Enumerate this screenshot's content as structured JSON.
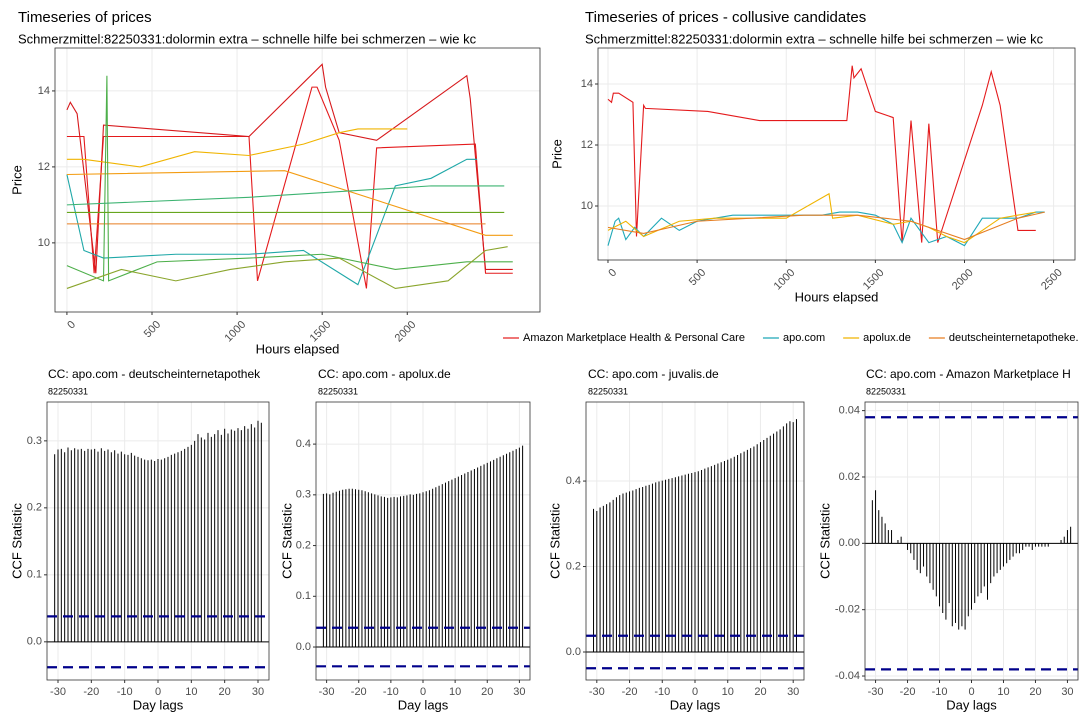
{
  "chart_data": [
    {
      "type": "line",
      "title": "Timeseries of prices",
      "subtitle": "Schmerzmittel:82250331:dolormin extra – schnelle hilfe bei schmerzen – wie kc",
      "x_label": "Hours elapsed",
      "y_label": "Price",
      "xlim": [
        -70,
        2780
      ],
      "ylim": [
        8.18,
        15.13
      ],
      "xticks": [
        0,
        500,
        1000,
        1500,
        2000
      ],
      "yticks": [
        10,
        12,
        14
      ],
      "grid": true,
      "series": [
        {
          "color": "#e41a1c",
          "x": [
            0,
            100,
            160,
            215,
            640,
            1070,
            1120,
            1440,
            1470,
            1600,
            1760,
            1820,
            2400,
            2460,
            2620
          ],
          "values": [
            12.8,
            12.8,
            9.2,
            12.8,
            12.8,
            12.8,
            9.0,
            14.1,
            14.1,
            12.7,
            8.8,
            12.5,
            12.6,
            9.2,
            9.2
          ]
        },
        {
          "color": "#d7191c",
          "x": [
            0,
            20,
            60,
            170,
            215,
            1070,
            1500,
            1520,
            1600,
            1820,
            2350,
            2370,
            2460,
            2620
          ],
          "values": [
            13.5,
            13.7,
            13.4,
            9.2,
            13.1,
            12.8,
            14.7,
            14.1,
            12.9,
            12.7,
            14.4,
            13.8,
            9.3,
            9.3
          ]
        },
        {
          "color": "#1fa8a8",
          "x": [
            0,
            100,
            215,
            640,
            1070,
            1390,
            1710,
            1930,
            2140,
            2350,
            2410
          ],
          "values": [
            11.8,
            9.8,
            9.6,
            9.7,
            9.7,
            9.8,
            8.9,
            11.5,
            11.7,
            12.2,
            12.2
          ]
        },
        {
          "color": "#f0b400",
          "x": [
            0,
            100,
            430,
            750,
            1070,
            1390,
            1600,
            1710,
            2000
          ],
          "values": [
            12.2,
            12.2,
            12.0,
            12.4,
            12.3,
            12.6,
            12.9,
            13.0,
            13.0
          ]
        },
        {
          "color": "#f39c12",
          "x": [
            0,
            1280,
            2460,
            2620
          ],
          "values": [
            11.8,
            11.9,
            10.2,
            10.2
          ]
        },
        {
          "color": "#e67e22",
          "x": [
            0,
            2460
          ],
          "values": [
            10.5,
            10.5
          ]
        },
        {
          "color": "#4daf4a",
          "x": [
            0,
            215,
            235,
            245,
            530,
            1070,
            1500,
            1930,
            2350,
            2620
          ],
          "values": [
            9.4,
            9.0,
            14.4,
            9.0,
            9.5,
            9.6,
            9.7,
            9.3,
            9.5,
            9.5
          ]
        },
        {
          "color": "#8aa52c",
          "x": [
            0,
            320,
            640,
            960,
            1280,
            1600,
            1930,
            2240,
            2460,
            2590
          ],
          "values": [
            8.8,
            9.3,
            9.0,
            9.3,
            9.5,
            9.6,
            8.8,
            9.0,
            9.8,
            9.9
          ]
        },
        {
          "color": "#3cb371",
          "x": [
            0,
            1070,
            2140,
            2570
          ],
          "values": [
            11.0,
            11.2,
            11.5,
            11.5
          ]
        },
        {
          "color": "#66a61e",
          "x": [
            0,
            2570
          ],
          "values": [
            10.8,
            10.8
          ]
        }
      ]
    },
    {
      "type": "line",
      "title": "Timeseries of prices - collusive candidates",
      "subtitle": "Schmerzmittel:82250331:dolormin extra – schnelle hilfe bei schmerzen – wie kc",
      "x_label": "Hours elapsed",
      "y_label": "Price",
      "xlim": [
        -56,
        2620
      ],
      "ylim": [
        8.23,
        15.18
      ],
      "xticks": [
        0,
        500,
        1000,
        1500,
        2000,
        2500
      ],
      "yticks": [
        10,
        12,
        14
      ],
      "grid": true,
      "legend": "bottom",
      "series": [
        {
          "name": "Amazon Marketplace Health & Personal Care",
          "color": "#e41a1c",
          "x": [
            0,
            20,
            30,
            60,
            140,
            160,
            200,
            210,
            560,
            850,
            1080,
            1340,
            1370,
            1380,
            1420,
            1500,
            1600,
            1650,
            1700,
            1760,
            1800,
            1850,
            2100,
            2150,
            2200,
            2300,
            2400
          ],
          "values": [
            13.5,
            13.4,
            13.7,
            13.7,
            13.4,
            9.0,
            13.3,
            13.2,
            13.1,
            12.8,
            12.8,
            12.8,
            14.6,
            14.2,
            14.5,
            13.1,
            12.9,
            8.8,
            12.8,
            8.8,
            12.7,
            8.8,
            13.3,
            14.4,
            13.3,
            9.2,
            9.2
          ]
        },
        {
          "name": "apo.com",
          "color": "#1fa8b8",
          "x": [
            0,
            40,
            60,
            100,
            150,
            200,
            300,
            400,
            500,
            600,
            700,
            800,
            900,
            1000,
            1200,
            1300,
            1400,
            1500,
            1600,
            1650,
            1700,
            1800,
            1900,
            2000,
            2100,
            2200,
            2300,
            2400,
            2450
          ],
          "values": [
            8.7,
            9.5,
            9.6,
            8.9,
            9.3,
            9.0,
            9.6,
            9.2,
            9.5,
            9.6,
            9.7,
            9.7,
            9.7,
            9.7,
            9.7,
            9.8,
            9.8,
            9.7,
            9.4,
            8.8,
            9.6,
            8.8,
            9.0,
            8.7,
            9.6,
            9.6,
            9.6,
            9.8,
            9.8
          ]
        },
        {
          "name": "apolux.de",
          "color": "#f0b400",
          "x": [
            0,
            100,
            200,
            400,
            600,
            800,
            1000,
            1240,
            1260,
            1400,
            1600,
            1700,
            1800,
            1900,
            2000,
            2200,
            2400
          ],
          "values": [
            9.2,
            9.5,
            9.0,
            9.5,
            9.6,
            9.6,
            9.6,
            10.4,
            9.6,
            9.7,
            9.4,
            9.5,
            9.3,
            9.0,
            8.8,
            9.6,
            9.8
          ]
        },
        {
          "name": "deutscheinternetapotheke.",
          "color": "#e67e22",
          "x": [
            0,
            200,
            500,
            800,
            1100,
            1400,
            1700,
            2000,
            2300,
            2450
          ],
          "values": [
            9.3,
            9.1,
            9.5,
            9.6,
            9.7,
            9.7,
            9.5,
            8.9,
            9.6,
            9.8
          ]
        }
      ]
    },
    {
      "type": "bar",
      "title": "CC: apo.com - deutscheinternetapothek",
      "subtitle": "82250331",
      "x_label": "Day lags",
      "y_label": "CCF Statistic",
      "xlim": [
        -33.3,
        33.3
      ],
      "ylim": [
        -0.057,
        0.358
      ],
      "xticks": [
        -30,
        -20,
        -10,
        0,
        10,
        20,
        30
      ],
      "yticks": [
        {
          "value": 0,
          "label": "0.0"
        },
        0.1,
        0.2,
        0.3
      ],
      "conf_limits": [
        -0.038,
        0.038
      ],
      "grid": true,
      "x": [
        -31,
        -30,
        -29,
        -28,
        -27,
        -26,
        -25,
        -24,
        -23,
        -22,
        -21,
        -20,
        -19,
        -18,
        -17,
        -16,
        -15,
        -14,
        -13,
        -12,
        -11,
        -10,
        -9,
        -8,
        -7,
        -6,
        -5,
        -4,
        -3,
        -2,
        -1,
        0,
        1,
        2,
        3,
        4,
        5,
        6,
        7,
        8,
        9,
        10,
        11,
        12,
        13,
        14,
        15,
        16,
        17,
        18,
        19,
        20,
        21,
        22,
        23,
        24,
        25,
        26,
        27,
        28,
        29,
        30,
        31
      ],
      "values": [
        0.28,
        0.287,
        0.288,
        0.283,
        0.29,
        0.286,
        0.289,
        0.287,
        0.288,
        0.285,
        0.288,
        0.287,
        0.288,
        0.284,
        0.289,
        0.285,
        0.287,
        0.283,
        0.286,
        0.281,
        0.284,
        0.28,
        0.279,
        0.282,
        0.278,
        0.276,
        0.274,
        0.272,
        0.271,
        0.272,
        0.27,
        0.273,
        0.272,
        0.274,
        0.276,
        0.279,
        0.281,
        0.283,
        0.285,
        0.288,
        0.291,
        0.294,
        0.3,
        0.31,
        0.305,
        0.302,
        0.312,
        0.306,
        0.31,
        0.316,
        0.309,
        0.318,
        0.311,
        0.317,
        0.315,
        0.319,
        0.316,
        0.322,
        0.318,
        0.325,
        0.32,
        0.33,
        0.327
      ]
    },
    {
      "type": "bar",
      "title": "CC: apo.com - apolux.de",
      "subtitle": "82250331",
      "x_label": "Day lags",
      "y_label": "CCF Statistic",
      "xlim": [
        -33.3,
        33.3
      ],
      "ylim": [
        -0.065,
        0.483
      ],
      "xticks": [
        -30,
        -20,
        -10,
        0,
        10,
        20,
        30
      ],
      "yticks": [
        {
          "value": 0,
          "label": "0.0"
        },
        0.1,
        0.2,
        0.3,
        0.4
      ],
      "conf_limits": [
        -0.038,
        0.038
      ],
      "grid": true,
      "x": [
        -31,
        -30,
        -29,
        -28,
        -27,
        -26,
        -25,
        -24,
        -23,
        -22,
        -21,
        -20,
        -19,
        -18,
        -17,
        -16,
        -15,
        -14,
        -13,
        -12,
        -11,
        -10,
        -9,
        -8,
        -7,
        -6,
        -5,
        -4,
        -3,
        -2,
        -1,
        0,
        1,
        2,
        3,
        4,
        5,
        6,
        7,
        8,
        9,
        10,
        11,
        12,
        13,
        14,
        15,
        16,
        17,
        18,
        19,
        20,
        21,
        22,
        23,
        24,
        25,
        26,
        27,
        28,
        29,
        30,
        31
      ],
      "values": [
        0.302,
        0.303,
        0.301,
        0.304,
        0.306,
        0.308,
        0.31,
        0.311,
        0.312,
        0.312,
        0.311,
        0.31,
        0.309,
        0.307,
        0.305,
        0.303,
        0.301,
        0.299,
        0.297,
        0.296,
        0.294,
        0.295,
        0.296,
        0.295,
        0.297,
        0.298,
        0.299,
        0.301,
        0.3,
        0.302,
        0.303,
        0.305,
        0.307,
        0.309,
        0.312,
        0.315,
        0.318,
        0.321,
        0.324,
        0.327,
        0.33,
        0.333,
        0.336,
        0.339,
        0.342,
        0.345,
        0.348,
        0.351,
        0.354,
        0.357,
        0.36,
        0.363,
        0.366,
        0.369,
        0.372,
        0.375,
        0.378,
        0.381,
        0.384,
        0.387,
        0.39,
        0.393,
        0.397
      ]
    },
    {
      "type": "bar",
      "title": "CC: apo.com - juvalis.de",
      "subtitle": "82250331",
      "x_label": "Day lags",
      "y_label": "CCF Statistic",
      "xlim": [
        -33.3,
        33.3
      ],
      "ylim": [
        -0.0655,
        0.585
      ],
      "xticks": [
        -30,
        -20,
        -10,
        0,
        10,
        20,
        30
      ],
      "yticks": [
        {
          "value": 0,
          "label": "0.0"
        },
        0.2,
        0.4
      ],
      "conf_limits": [
        -0.038,
        0.038
      ],
      "grid": true,
      "x": [
        -31,
        -30,
        -29,
        -28,
        -27,
        -26,
        -25,
        -24,
        -23,
        -22,
        -21,
        -20,
        -19,
        -18,
        -17,
        -16,
        -15,
        -14,
        -13,
        -12,
        -11,
        -10,
        -9,
        -8,
        -7,
        -6,
        -5,
        -4,
        -3,
        -2,
        -1,
        0,
        1,
        2,
        3,
        4,
        5,
        6,
        7,
        8,
        9,
        10,
        11,
        12,
        13,
        14,
        15,
        16,
        17,
        18,
        19,
        20,
        21,
        22,
        23,
        24,
        25,
        26,
        27,
        28,
        29,
        30,
        31
      ],
      "values": [
        0.335,
        0.33,
        0.338,
        0.342,
        0.346,
        0.35,
        0.356,
        0.362,
        0.367,
        0.371,
        0.373,
        0.376,
        0.378,
        0.381,
        0.384,
        0.386,
        0.389,
        0.391,
        0.394,
        0.397,
        0.399,
        0.401,
        0.403,
        0.405,
        0.407,
        0.409,
        0.411,
        0.413,
        0.415,
        0.417,
        0.419,
        0.421,
        0.423,
        0.426,
        0.429,
        0.432,
        0.435,
        0.438,
        0.441,
        0.444,
        0.447,
        0.45,
        0.453,
        0.457,
        0.461,
        0.465,
        0.469,
        0.473,
        0.477,
        0.481,
        0.486,
        0.491,
        0.496,
        0.501,
        0.506,
        0.511,
        0.516,
        0.521,
        0.528,
        0.535,
        0.54,
        0.538,
        0.545
      ]
    },
    {
      "type": "bar",
      "title": "CC: apo.com - Amazon Marketplace H",
      "subtitle": "82250331",
      "x_label": "Day lags",
      "y_label": "CCF Statistic",
      "xlim": [
        -33.3,
        33.3
      ],
      "ylim": [
        -0.0412,
        0.0426
      ],
      "xticks": [
        -30,
        -20,
        -10,
        0,
        10,
        20,
        30
      ],
      "yticks": [
        -0.04,
        -0.02,
        {
          "value": 0,
          "label": "0.00"
        },
        0.02,
        0.04
      ],
      "conf_limits": [
        -0.038,
        0.038
      ],
      "grid": true,
      "x": [
        -31,
        -30,
        -29,
        -28,
        -27,
        -26,
        -25,
        -24,
        -23,
        -22,
        -21,
        -20,
        -19,
        -18,
        -17,
        -16,
        -15,
        -14,
        -13,
        -12,
        -11,
        -10,
        -9,
        -8,
        -7,
        -6,
        -5,
        -4,
        -3,
        -2,
        -1,
        0,
        1,
        2,
        3,
        4,
        5,
        6,
        7,
        8,
        9,
        10,
        11,
        12,
        13,
        14,
        15,
        16,
        17,
        18,
        19,
        20,
        21,
        22,
        23,
        24,
        25,
        26,
        27,
        28,
        29,
        30,
        31
      ],
      "values": [
        0.013,
        0.016,
        0.01,
        0.008,
        0.006,
        0.004,
        0.004,
        0.0,
        0.001,
        0.002,
        0.0,
        -0.002,
        -0.003,
        -0.005,
        -0.008,
        -0.009,
        -0.007,
        -0.01,
        -0.012,
        -0.014,
        -0.016,
        -0.019,
        -0.021,
        -0.023,
        -0.018,
        -0.025,
        -0.024,
        -0.026,
        -0.025,
        -0.026,
        -0.022,
        -0.02,
        -0.018,
        -0.016,
        -0.015,
        -0.013,
        -0.017,
        -0.012,
        -0.01,
        -0.009,
        -0.008,
        -0.007,
        -0.006,
        -0.005,
        -0.004,
        -0.003,
        -0.003,
        -0.002,
        -0.001,
        -0.001,
        -0.002,
        -0.001,
        -0.001,
        -0.001,
        -0.001,
        -0.001,
        0.0,
        0.0,
        0.0,
        0.001,
        0.002,
        0.004,
        0.005
      ]
    }
  ]
}
